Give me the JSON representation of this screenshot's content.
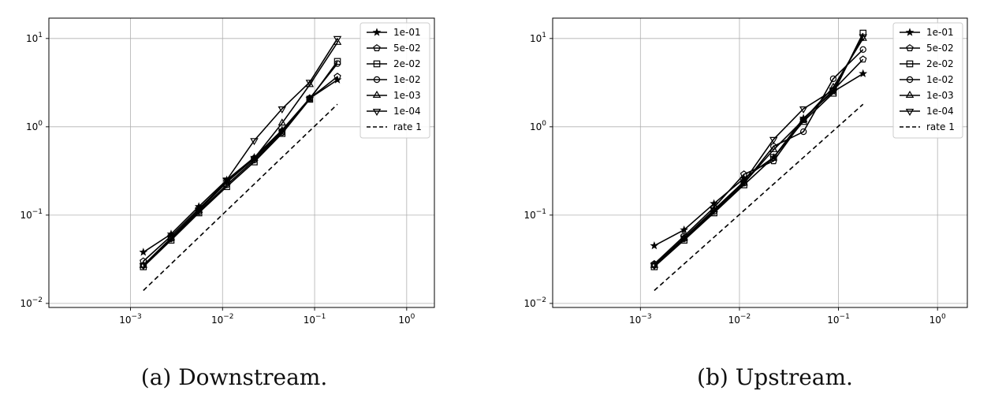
{
  "chart_data": [
    {
      "type": "line",
      "caption": "(a) Downstream.",
      "xscale": "log",
      "yscale": "log",
      "xlim": [
        0.00013,
        2.0
      ],
      "ylim": [
        0.009,
        17.0
      ],
      "grid": true,
      "legend_position": "top-right",
      "x_ticks": [
        {
          "v": 0.001,
          "base": "10",
          "exp": "−3"
        },
        {
          "v": 0.01,
          "base": "10",
          "exp": "−2"
        },
        {
          "v": 0.1,
          "base": "10",
          "exp": "−1"
        },
        {
          "v": 1,
          "base": "10",
          "exp": "0"
        }
      ],
      "y_ticks": [
        {
          "v": 0.01,
          "base": "10",
          "exp": "−2"
        },
        {
          "v": 0.1,
          "base": "10",
          "exp": "−1"
        },
        {
          "v": 1,
          "base": "10",
          "exp": "0"
        },
        {
          "v": 10,
          "base": "10",
          "exp": "1"
        }
      ],
      "x": [
        0.00138,
        0.00276,
        0.00553,
        0.0111,
        0.0221,
        0.0443,
        0.0885,
        0.177
      ],
      "series": [
        {
          "name": "1e-01",
          "marker": "star",
          "values": [
            0.038,
            0.061,
            0.125,
            0.25,
            0.45,
            0.92,
            2.1,
            3.4
          ]
        },
        {
          "name": "5e-02",
          "marker": "pentagon",
          "values": [
            0.03,
            0.058,
            0.118,
            0.24,
            0.44,
            0.89,
            2.1,
            3.7
          ]
        },
        {
          "name": "2e-02",
          "marker": "square",
          "values": [
            0.026,
            0.052,
            0.106,
            0.21,
            0.4,
            0.84,
            2.05,
            5.5
          ]
        },
        {
          "name": "1e-02",
          "marker": "circle",
          "values": [
            0.027,
            0.054,
            0.109,
            0.22,
            0.42,
            0.86,
            2.1,
            5.2
          ]
        },
        {
          "name": "1e-03",
          "marker": "triangle-up",
          "values": [
            0.027,
            0.055,
            0.113,
            0.235,
            0.44,
            1.1,
            3.0,
            9.0
          ]
        },
        {
          "name": "1e-04",
          "marker": "triangle-down",
          "values": [
            0.027,
            0.055,
            0.113,
            0.25,
            0.7,
            1.6,
            3.2,
            10.0
          ]
        }
      ],
      "reference": {
        "name": "rate 1",
        "x": [
          0.00138,
          0.177
        ],
        "values": [
          0.014,
          1.8
        ]
      }
    },
    {
      "type": "line",
      "caption": "(b) Upstream.",
      "xscale": "log",
      "yscale": "log",
      "xlim": [
        0.00013,
        2.0
      ],
      "ylim": [
        0.009,
        17.0
      ],
      "grid": true,
      "legend_position": "top-right",
      "x_ticks": [
        {
          "v": 0.001,
          "base": "10",
          "exp": "−3"
        },
        {
          "v": 0.01,
          "base": "10",
          "exp": "−2"
        },
        {
          "v": 0.1,
          "base": "10",
          "exp": "−1"
        },
        {
          "v": 1,
          "base": "10",
          "exp": "0"
        }
      ],
      "y_ticks": [
        {
          "v": 0.01,
          "base": "10",
          "exp": "−2"
        },
        {
          "v": 0.1,
          "base": "10",
          "exp": "−1"
        },
        {
          "v": 1,
          "base": "10",
          "exp": "0"
        },
        {
          "v": 10,
          "base": "10",
          "exp": "1"
        }
      ],
      "x": [
        0.00138,
        0.00276,
        0.00553,
        0.0111,
        0.0221,
        0.0443,
        0.0885,
        0.177
      ],
      "series": [
        {
          "name": "1e-01",
          "marker": "star",
          "values": [
            0.045,
            0.068,
            0.135,
            0.26,
            0.45,
            1.25,
            2.5,
            4.0
          ]
        },
        {
          "name": "5e-02",
          "marker": "pentagon",
          "values": [
            0.028,
            0.058,
            0.122,
            0.29,
            0.41,
            1.2,
            2.6,
            5.8
          ]
        },
        {
          "name": "2e-02",
          "marker": "square",
          "values": [
            0.026,
            0.052,
            0.106,
            0.22,
            0.45,
            1.15,
            2.4,
            11.5
          ]
        },
        {
          "name": "1e-02",
          "marker": "circle",
          "values": [
            0.027,
            0.054,
            0.11,
            0.23,
            0.6,
            0.88,
            3.5,
            7.5
          ]
        },
        {
          "name": "1e-03",
          "marker": "triangle-up",
          "values": [
            0.027,
            0.055,
            0.115,
            0.23,
            0.55,
            1.2,
            2.8,
            10.0
          ]
        },
        {
          "name": "1e-04",
          "marker": "triangle-down",
          "values": [
            0.027,
            0.055,
            0.115,
            0.24,
            0.72,
            1.6,
            2.6,
            10.5
          ]
        }
      ],
      "reference": {
        "name": "rate 1",
        "x": [
          0.00138,
          0.177
        ],
        "values": [
          0.014,
          1.8
        ]
      }
    }
  ]
}
